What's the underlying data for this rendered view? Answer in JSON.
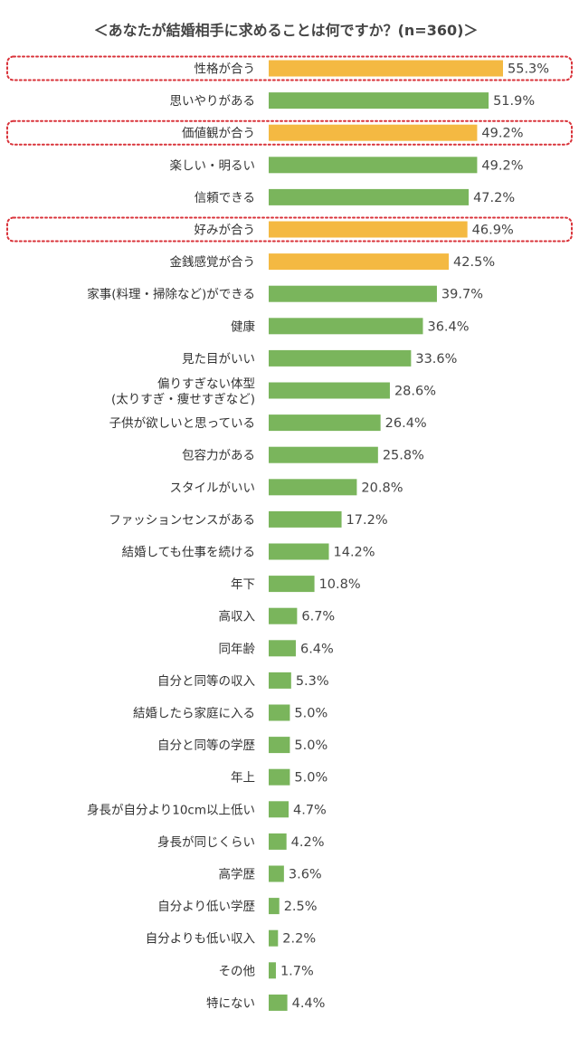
{
  "chart_data": {
    "type": "bar",
    "orientation": "horizontal",
    "title": "＜あなたが結婚相手に求めることは何ですか？(n=360)＞",
    "categories": [
      "性格が合う",
      "思いやりがある",
      "価値観が合う",
      "楽しい・明るい",
      "信頼できる",
      "好みが合う",
      "金銭感覚が合う",
      "家事(料理・掃除など)ができる",
      "健康",
      "見た目がいい",
      "偏りすぎない体型\n(太りすぎ・痩せすぎなど)",
      "子供が欲しいと思っている",
      "包容力がある",
      "スタイルがいい",
      "ファッションセンスがある",
      "結婚しても仕事を続ける",
      "年下",
      "高収入",
      "同年齢",
      "自分と同等の収入",
      "結婚したら家庭に入る",
      "自分と同等の学歴",
      "年上",
      "身長が自分より10cm以上低い",
      "身長が同じくらい",
      "高学歴",
      "自分より低い学歴",
      "自分よりも低い収入",
      "その他",
      "特にない"
    ],
    "values": [
      55.3,
      51.9,
      49.2,
      49.2,
      47.2,
      46.9,
      42.5,
      39.7,
      36.4,
      33.6,
      28.6,
      26.4,
      25.8,
      20.8,
      17.2,
      14.2,
      10.8,
      6.7,
      6.4,
      5.3,
      5.0,
      5.0,
      5.0,
      4.7,
      4.2,
      3.6,
      2.5,
      2.2,
      1.7,
      4.4
    ],
    "value_labels": [
      "55.3%",
      "51.9%",
      "49.2%",
      "49.2%",
      "47.2%",
      "46.9%",
      "42.5%",
      "39.7%",
      "36.4%",
      "33.6%",
      "28.6%",
      "26.4%",
      "25.8%",
      "20.8%",
      "17.2%",
      "14.2%",
      "10.8%",
      "6.7%",
      "6.4%",
      "5.3%",
      "5.0%",
      "5.0%",
      "5.0%",
      "4.7%",
      "4.2%",
      "3.6%",
      "2.5%",
      "2.2%",
      "1.7%",
      "4.4%"
    ],
    "highlighted": [
      0,
      2,
      5,
      6
    ],
    "outlined": [
      0,
      2,
      5
    ],
    "unit": "%",
    "xlim": [
      0,
      55.3
    ],
    "grid": false,
    "legend": "none",
    "colors": {
      "default": "#7ab55c",
      "highlight": "#f4b942",
      "outline": "#d9333a"
    }
  }
}
